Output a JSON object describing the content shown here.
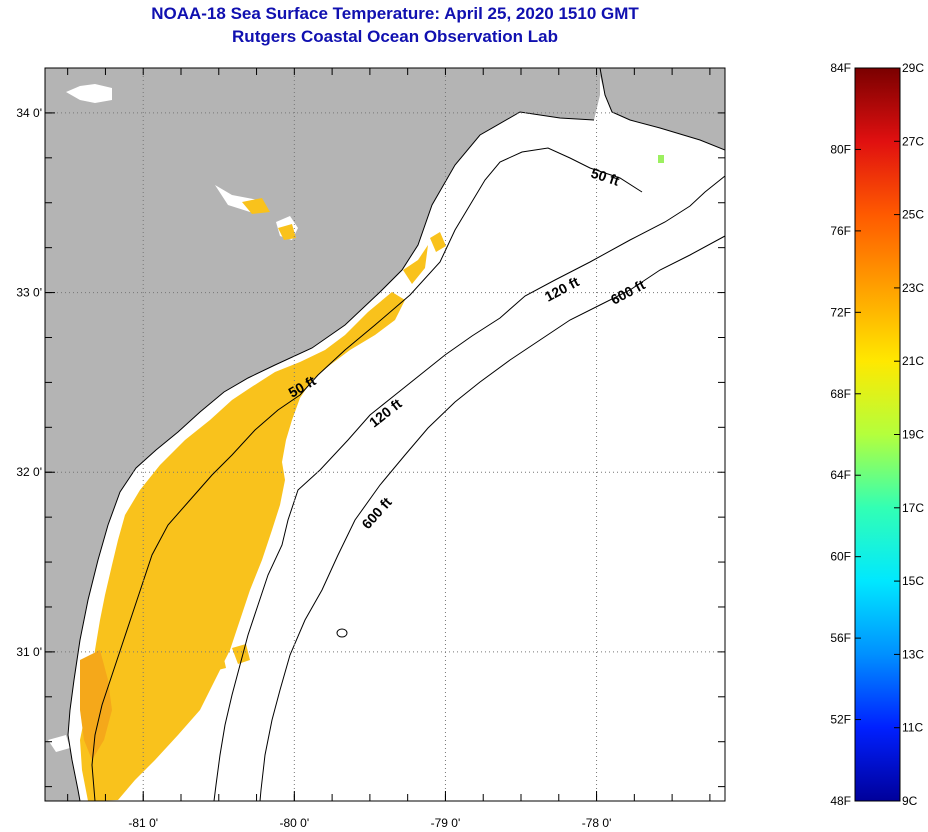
{
  "title": {
    "line1": "NOAA-18 Sea Surface Temperature:  April 25, 2020 1510 GMT",
    "line2": "Rutgers Coastal Ocean Observation Lab"
  },
  "map": {
    "lon_range": [
      -81.65,
      -77.15
    ],
    "lat_range": [
      30.17,
      34.25
    ],
    "x_ticks": [
      {
        "value": -81,
        "label": "-81 0'"
      },
      {
        "value": -80,
        "label": "-80 0'"
      },
      {
        "value": -79,
        "label": "-79 0'"
      },
      {
        "value": -78,
        "label": "-78 0'"
      }
    ],
    "y_ticks": [
      {
        "value": 34,
        "label": "34 0'"
      },
      {
        "value": 33,
        "label": "33 0'"
      },
      {
        "value": 32,
        "label": "32 0'"
      },
      {
        "value": 31,
        "label": "31 0'"
      }
    ],
    "contours": [
      {
        "label": "50 ft",
        "depth": 50
      },
      {
        "label": "120 ft",
        "depth": 120
      },
      {
        "label": "600 ft",
        "depth": 600
      }
    ],
    "colors": {
      "land": "#b4b4b4",
      "ocean": "#ffffff",
      "sst_main": "#f9c21c",
      "sst_warm": "#f5a81a"
    }
  },
  "colorbar": {
    "f_labels": [
      "84F",
      "80F",
      "76F",
      "72F",
      "68F",
      "64F",
      "60F",
      "56F",
      "52F",
      "48F"
    ],
    "c_labels": [
      "29C",
      "27C",
      "25C",
      "23C",
      "21C",
      "19C",
      "17C",
      "15C",
      "13C",
      "11C",
      "9C"
    ],
    "range_c": [
      9,
      29
    ],
    "colors_top_to_bottom": [
      "#7a0000",
      "#e01010",
      "#ff5a00",
      "#ffa000",
      "#ffe800",
      "#b4ff3c",
      "#32ffb4",
      "#00e8ff",
      "#0090ff",
      "#0020ff",
      "#00009a"
    ]
  }
}
